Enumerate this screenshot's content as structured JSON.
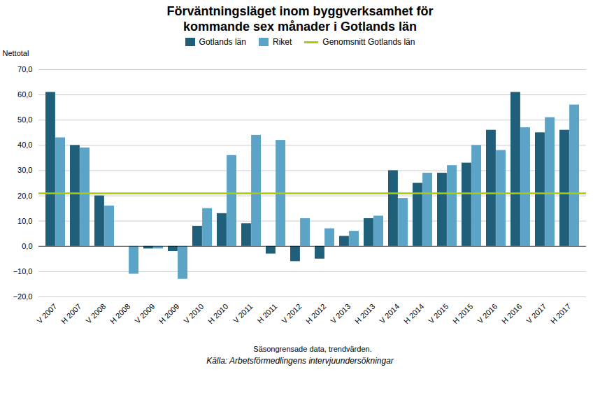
{
  "chart_data": {
    "type": "bar",
    "title": "Förväntningsläget inom byggverksamhet för\nkommande sex månader i Gotlands län",
    "y_label": "Nettotal",
    "x_label": "Säsongrensade data, trendvärden.",
    "source": "Källa: Arbetsförmedlingens intervjuundersökningar",
    "categories": [
      "V 2007",
      "H 2007",
      "V 2008",
      "H 2008",
      "V 2009",
      "H 2009",
      "V 2010",
      "H 2010",
      "V 2011",
      "H 2011",
      "V 2012",
      "H 2012",
      "V 2013",
      "H 2013",
      "V 2014",
      "H 2014",
      "V 2015",
      "H 2015",
      "V 2016",
      "H 2016",
      "V 2017",
      "H 2017"
    ],
    "series": [
      {
        "name": "Gotlands län",
        "color": "#1F5F7A",
        "values": [
          61,
          40,
          20,
          0,
          -1,
          -2,
          8,
          13,
          9,
          -3,
          -6,
          -5,
          4,
          11,
          30,
          25,
          29,
          33,
          46,
          61,
          45,
          46
        ]
      },
      {
        "name": "Riket",
        "color": "#5BA4C8",
        "values": [
          43,
          39,
          16,
          -11,
          -1,
          -13,
          15,
          36,
          44,
          42,
          11,
          7,
          6,
          12,
          19,
          29,
          32,
          40,
          38,
          47,
          51,
          56
        ]
      }
    ],
    "reference_lines": [
      {
        "name": "Genomsnitt Gotlands län",
        "value": 21,
        "color": "#AACC00"
      }
    ],
    "ylim": [
      -20,
      70
    ],
    "yticks": [
      {
        "value": -20,
        "label": "−20,0"
      },
      {
        "value": -10,
        "label": "−10,0"
      },
      {
        "value": 0,
        "label": "0,0"
      },
      {
        "value": 10,
        "label": "10,0"
      },
      {
        "value": 20,
        "label": "20,0"
      },
      {
        "value": 30,
        "label": "30,0"
      },
      {
        "value": 40,
        "label": "40,0"
      },
      {
        "value": 50,
        "label": "50,0"
      },
      {
        "value": 60,
        "label": "60,0"
      },
      {
        "value": 70,
        "label": "70,0"
      }
    ],
    "grid": true,
    "legend": "top"
  }
}
